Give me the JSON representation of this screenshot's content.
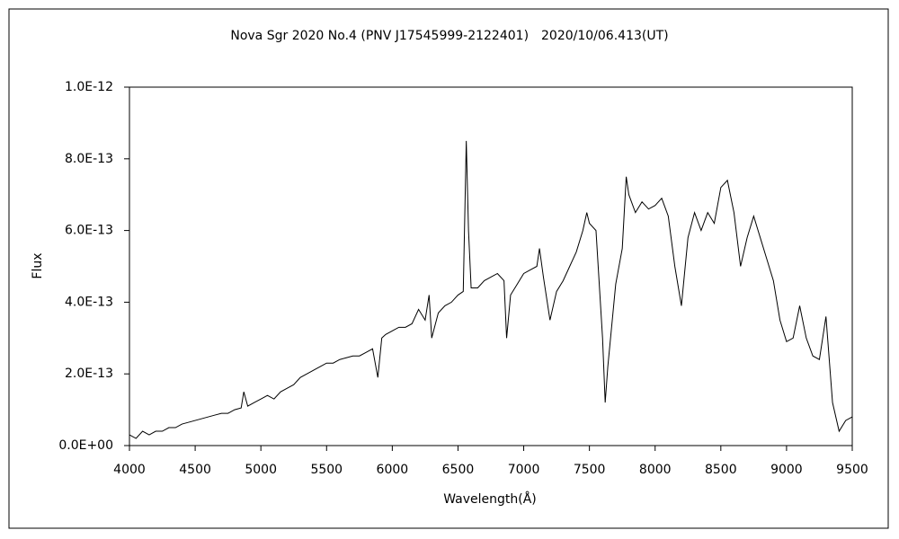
{
  "chart_data": {
    "type": "line",
    "title": "Nova Sgr 2020 No.4 (PNV J17545999-2122401)　2020/10/06.413(UT)",
    "x_label": "Wavelength(Å)",
    "y_label": "Flux",
    "x": [
      4000,
      4050,
      4100,
      4150,
      4200,
      4250,
      4300,
      4350,
      4400,
      4450,
      4500,
      4550,
      4600,
      4650,
      4700,
      4750,
      4800,
      4850,
      4870,
      4900,
      4950,
      5000,
      5050,
      5100,
      5150,
      5200,
      5250,
      5300,
      5350,
      5400,
      5450,
      5500,
      5550,
      5600,
      5650,
      5700,
      5750,
      5800,
      5850,
      5890,
      5920,
      5950,
      6000,
      6050,
      6100,
      6150,
      6200,
      6250,
      6280,
      6300,
      6350,
      6400,
      6450,
      6500,
      6540,
      6563,
      6580,
      6600,
      6650,
      6700,
      6750,
      6800,
      6850,
      6870,
      6900,
      6950,
      7000,
      7050,
      7100,
      7120,
      7150,
      7200,
      7250,
      7300,
      7350,
      7400,
      7450,
      7480,
      7500,
      7550,
      7600,
      7620,
      7640,
      7700,
      7750,
      7780,
      7800,
      7850,
      7900,
      7950,
      8000,
      8050,
      8100,
      8150,
      8200,
      8250,
      8300,
      8350,
      8400,
      8450,
      8500,
      8550,
      8600,
      8650,
      8700,
      8750,
      8800,
      8850,
      8900,
      8950,
      9000,
      9050,
      9100,
      9150,
      9200,
      9250,
      9300,
      9350,
      9400,
      9450,
      9500
    ],
    "series": [
      {
        "name": "Flux",
        "color": "#000000",
        "values": [
          3e-14,
          2e-14,
          4e-14,
          3e-14,
          4e-14,
          4e-14,
          5e-14,
          5e-14,
          6e-14,
          6.5e-14,
          7e-14,
          7.5e-14,
          8e-14,
          8.5e-14,
          9e-14,
          9e-14,
          1e-13,
          1.05e-13,
          1.5e-13,
          1.1e-13,
          1.2e-13,
          1.3e-13,
          1.4e-13,
          1.3e-13,
          1.5e-13,
          1.6e-13,
          1.7e-13,
          1.9e-13,
          2e-13,
          2.1e-13,
          2.2e-13,
          2.3e-13,
          2.3e-13,
          2.4e-13,
          2.45e-13,
          2.5e-13,
          2.5e-13,
          2.6e-13,
          2.7e-13,
          1.9e-13,
          3e-13,
          3.1e-13,
          3.2e-13,
          3.3e-13,
          3.3e-13,
          3.4e-13,
          3.8e-13,
          3.5e-13,
          4.2e-13,
          3e-13,
          3.7e-13,
          3.9e-13,
          4e-13,
          4.2e-13,
          4.3e-13,
          8.5e-13,
          6e-13,
          4.4e-13,
          4.4e-13,
          4.6e-13,
          4.7e-13,
          4.8e-13,
          4.6e-13,
          3e-13,
          4.2e-13,
          4.5e-13,
          4.8e-13,
          4.9e-13,
          5e-13,
          5.5e-13,
          4.7e-13,
          3.5e-13,
          4.3e-13,
          4.6e-13,
          5e-13,
          5.4e-13,
          6e-13,
          6.5e-13,
          6.2e-13,
          6e-13,
          3e-13,
          1.2e-13,
          2.2e-13,
          4.5e-13,
          5.5e-13,
          7.5e-13,
          7e-13,
          6.5e-13,
          6.8e-13,
          6.6e-13,
          6.7e-13,
          6.9e-13,
          6.4e-13,
          5e-13,
          3.9e-13,
          5.8e-13,
          6.5e-13,
          6e-13,
          6.5e-13,
          6.2e-13,
          7.2e-13,
          7.4e-13,
          6.5e-13,
          5e-13,
          5.8e-13,
          6.4e-13,
          5.8e-13,
          5.2e-13,
          4.6e-13,
          3.5e-13,
          2.9e-13,
          3e-13,
          3.9e-13,
          3e-13,
          2.5e-13,
          2.4e-13,
          3.6e-13,
          1.2e-13,
          4e-14,
          7e-14,
          8e-14
        ]
      }
    ],
    "xlim": [
      4000,
      9500
    ],
    "xticks": [
      4000,
      4500,
      5000,
      5500,
      6000,
      6500,
      7000,
      7500,
      8000,
      8500,
      9000,
      9500
    ],
    "ylim": [
      0,
      1e-12
    ],
    "yticks": [
      {
        "value": 0,
        "label": "0.0E+00"
      },
      {
        "value": 2e-13,
        "label": "2.0E-13"
      },
      {
        "value": 4e-13,
        "label": "4.0E-13"
      },
      {
        "value": 6e-13,
        "label": "6.0E-13"
      },
      {
        "value": 8e-13,
        "label": "8.0E-13"
      },
      {
        "value": 1e-12,
        "label": "1.0E-12"
      }
    ],
    "grid": false
  }
}
